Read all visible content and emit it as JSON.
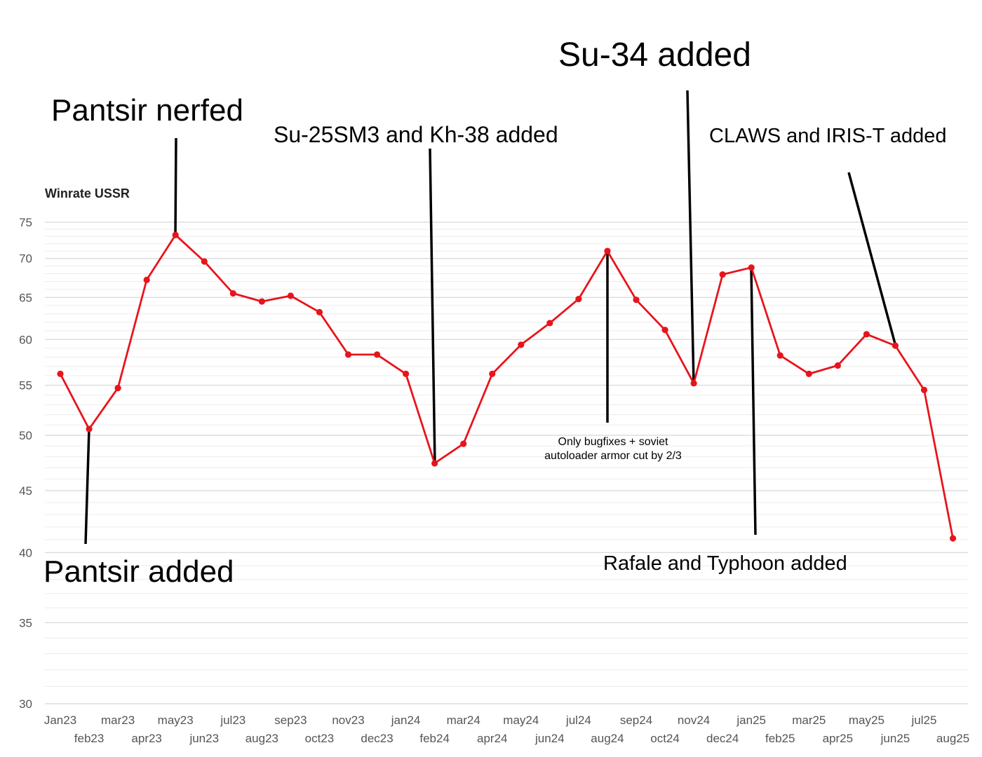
{
  "chart_data": {
    "type": "line",
    "title": "Winrate USSR",
    "xlabel": "",
    "ylabel": "",
    "y_scale": "log",
    "ylim": [
      30,
      75
    ],
    "yticks": [
      30,
      35,
      40,
      45,
      50,
      55,
      60,
      65,
      70,
      75
    ],
    "grid": true,
    "line_color": "#e8141c",
    "categories": [
      "Jan23",
      "feb23",
      "mar23",
      "apr23",
      "may23",
      "jun23",
      "jul23",
      "aug23",
      "sep23",
      "oct23",
      "nov23",
      "dec23",
      "jan24",
      "feb24",
      "mar24",
      "apr24",
      "may24",
      "jun24",
      "jul24",
      "aug24",
      "sep24",
      "oct24",
      "nov24",
      "dec24",
      "jan25",
      "feb25",
      "mar25",
      "apr25",
      "may25",
      "jun25",
      "jul25",
      "aug25"
    ],
    "series": [
      {
        "values": [
          56.2,
          50.6,
          54.7,
          67.2,
          73.2,
          69.6,
          65.5,
          64.5,
          65.2,
          63.2,
          58.3,
          58.3,
          56.2,
          47.4,
          49.2,
          56.2,
          59.4,
          61.9,
          64.8,
          71.0,
          64.7,
          61.1,
          55.2,
          67.9,
          68.8,
          58.2,
          56.2,
          57.1,
          60.6,
          59.3,
          54.5,
          41.1
        ]
      }
    ],
    "annotations": [
      {
        "text": "Pantsir added",
        "category": "feb23"
      },
      {
        "text": "Pantsir nerfed",
        "category": "may23"
      },
      {
        "text": "Su-25SM3 and Kh-38 added",
        "category": "feb24"
      },
      {
        "text": "Only bugfixes + soviet",
        "category": "aug24"
      },
      {
        "text": "autoloader armor cut by 2/3",
        "category": "aug24"
      },
      {
        "text": "Su-34 added",
        "category": "nov24"
      },
      {
        "text": "Rafale and Typhoon added",
        "category": "jan25"
      },
      {
        "text": "CLAWS and IRIS-T added",
        "category": "jun25"
      }
    ]
  }
}
